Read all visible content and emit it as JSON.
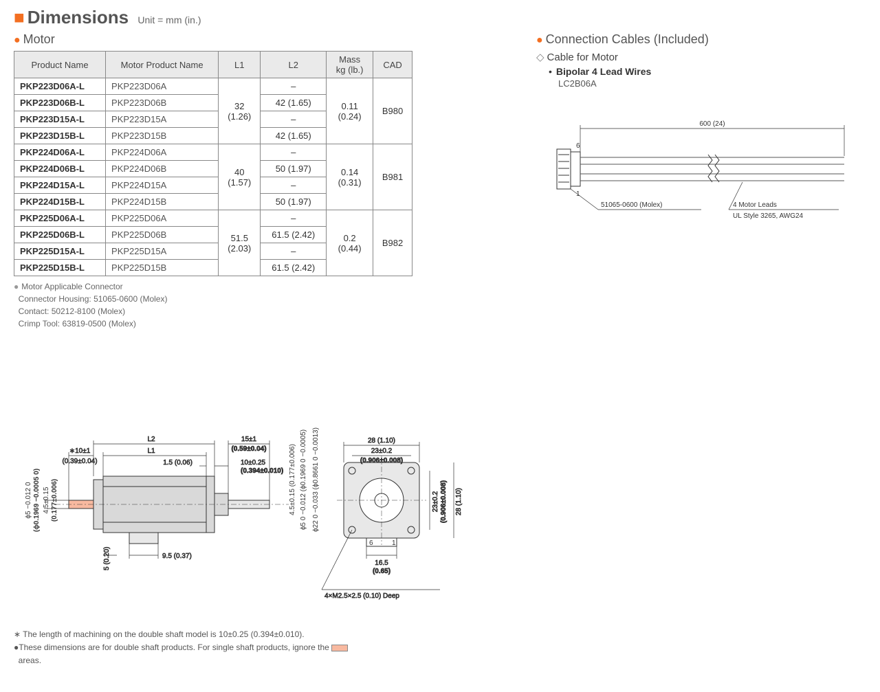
{
  "title": "Dimensions",
  "unit_label": "Unit = mm (in.)",
  "motor_section": {
    "heading": "Motor",
    "columns": [
      "Product Name",
      "Motor Product Name",
      "L1",
      "L2",
      "Mass kg (lb.)",
      "CAD"
    ],
    "groups": [
      {
        "l1": "32 (1.26)",
        "mass": "0.11 (0.24)",
        "cad": "B980",
        "rows": [
          {
            "pn": "PKP223D06A-L",
            "mn": "PKP223D06A",
            "l2": "–"
          },
          {
            "pn": "PKP223D06B-L",
            "mn": "PKP223D06B",
            "l2": "42 (1.65)"
          },
          {
            "pn": "PKP223D15A-L",
            "mn": "PKP223D15A",
            "l2": "–"
          },
          {
            "pn": "PKP223D15B-L",
            "mn": "PKP223D15B",
            "l2": "42 (1.65)"
          }
        ]
      },
      {
        "l1": "40 (1.57)",
        "mass": "0.14 (0.31)",
        "cad": "B981",
        "rows": [
          {
            "pn": "PKP224D06A-L",
            "mn": "PKP224D06A",
            "l2": "–"
          },
          {
            "pn": "PKP224D06B-L",
            "mn": "PKP224D06B",
            "l2": "50 (1.97)"
          },
          {
            "pn": "PKP224D15A-L",
            "mn": "PKP224D15A",
            "l2": "–"
          },
          {
            "pn": "PKP224D15B-L",
            "mn": "PKP224D15B",
            "l2": "50 (1.97)"
          }
        ]
      },
      {
        "l1": "51.5 (2.03)",
        "mass": "0.2 (0.44)",
        "cad": "B982",
        "rows": [
          {
            "pn": "PKP225D06A-L",
            "mn": "PKP225D06A",
            "l2": "–"
          },
          {
            "pn": "PKP225D06B-L",
            "mn": "PKP225D06B",
            "l2": "61.5 (2.42)"
          },
          {
            "pn": "PKP225D15A-L",
            "mn": "PKP225D15A",
            "l2": "–"
          },
          {
            "pn": "PKP225D15B-L",
            "mn": "PKP225D15B",
            "l2": "61.5 (2.42)"
          }
        ]
      }
    ],
    "connector_notes": {
      "title": "Motor Applicable Connector",
      "lines": [
        "Connector Housing: 51065-0600 (Molex)",
        "Contact: 50212-8100 (Molex)",
        "Crimp Tool: 63819-0500 (Molex)"
      ]
    }
  },
  "motor_drawing": {
    "side": {
      "L2": "L2",
      "L1": "L1",
      "rear_ext": "∗10±1",
      "rear_ext_in": "(0.39±0.04)",
      "front_flange_gap": "1.5 (0.06)",
      "front_shaft": "15±1",
      "front_shaft_in": "(0.59±0.04)",
      "boss_len": "10±0.25",
      "boss_len_in": "(0.394±0.010)",
      "below_conn": "9.5 (0.37)",
      "rear_step": "5 (0.20)",
      "shaft_flat_v": "4.5±0.15",
      "shaft_flat_v_in": "(0.177±0.006)",
      "shaft_dia_v": "ϕ5 −0.012 0",
      "shaft_dia_v_in": "(ϕ0.1969 −0.0005 0)"
    },
    "front_vert": {
      "a": "4.5±0.15 (0.177±0.006)",
      "b": "ϕ5 0 −0.012 (ϕ0.1969 0 −0.0005)",
      "c": "ϕ22 0 −0.033 (ϕ0.8661 0 −0.0013)"
    },
    "face": {
      "outer": "28 (1.10)",
      "hole_pitch": "23±0.2",
      "hole_pitch_in": "(0.906±0.008)",
      "conn_w": "16.5",
      "conn_w_in": "(0.65)",
      "thread": "4×M2.5×2.5 (0.10) Deep",
      "pin6": "6",
      "pin1": "1"
    },
    "colors": {
      "outline": "#333",
      "fill_body": "#d9d9d9",
      "fill_face": "#e8e8e8",
      "shaft_pink": "#f8b9a0"
    }
  },
  "cable_section": {
    "heading": "Connection Cables (Included)",
    "sub": "Cable for Motor",
    "type": "Bipolar 4 Lead Wires",
    "code": "LC2B06A",
    "length": "600 (24)",
    "pin_top": "6",
    "pin_bot": "1",
    "conn_label": "51065-0600 (Molex)",
    "lead_label1": "4 Motor Leads",
    "lead_label2": "UL Style 3265, AWG24",
    "colors": {
      "line": "#333",
      "wire": "#555"
    }
  },
  "footnotes": {
    "asterisk": "∗ The length of machining on the double shaft model is 10±0.25 (0.394±0.010).",
    "double_shaft": "These dimensions are for double shaft products. For single shaft products, ignore the",
    "areas": "areas."
  }
}
